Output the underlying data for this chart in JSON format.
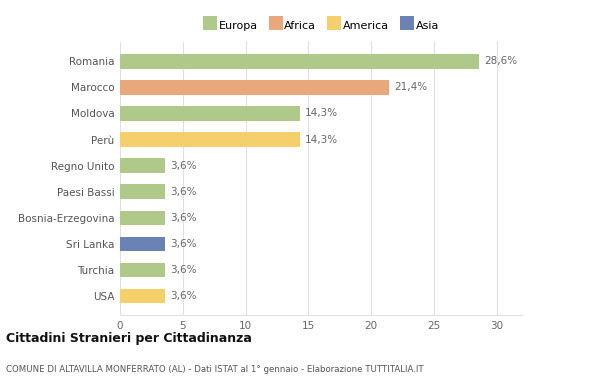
{
  "categories": [
    "USA",
    "Turchia",
    "Sri Lanka",
    "Bosnia-Erzegovina",
    "Paesi Bassi",
    "Regno Unito",
    "Perù",
    "Moldova",
    "Marocco",
    "Romania"
  ],
  "values": [
    3.6,
    3.6,
    3.6,
    3.6,
    3.6,
    3.6,
    14.3,
    14.3,
    21.4,
    28.6
  ],
  "bar_colors": [
    "#f5cf6b",
    "#aec98a",
    "#6b82b5",
    "#aec98a",
    "#aec98a",
    "#aec98a",
    "#f5cf6b",
    "#aec98a",
    "#e8a87c",
    "#aec98a"
  ],
  "value_labels": [
    "3,6%",
    "3,6%",
    "3,6%",
    "3,6%",
    "3,6%",
    "3,6%",
    "14,3%",
    "14,3%",
    "21,4%",
    "28,6%"
  ],
  "legend_labels": [
    "Europa",
    "Africa",
    "America",
    "Asia"
  ],
  "legend_colors": [
    "#aec98a",
    "#e8a87c",
    "#f5cf6b",
    "#6b82b5"
  ],
  "title": "Cittadini Stranieri per Cittadinanza",
  "subtitle": "COMUNE DI ALTAVILLA MONFERRATO (AL) - Dati ISTAT al 1° gennaio - Elaborazione TUTTITALIA.IT",
  "xlim": [
    0,
    32
  ],
  "xticks": [
    0,
    5,
    10,
    15,
    20,
    25,
    30
  ],
  "background_color": "#ffffff",
  "bar_height": 0.55,
  "grid_color": "#e0e0e0"
}
